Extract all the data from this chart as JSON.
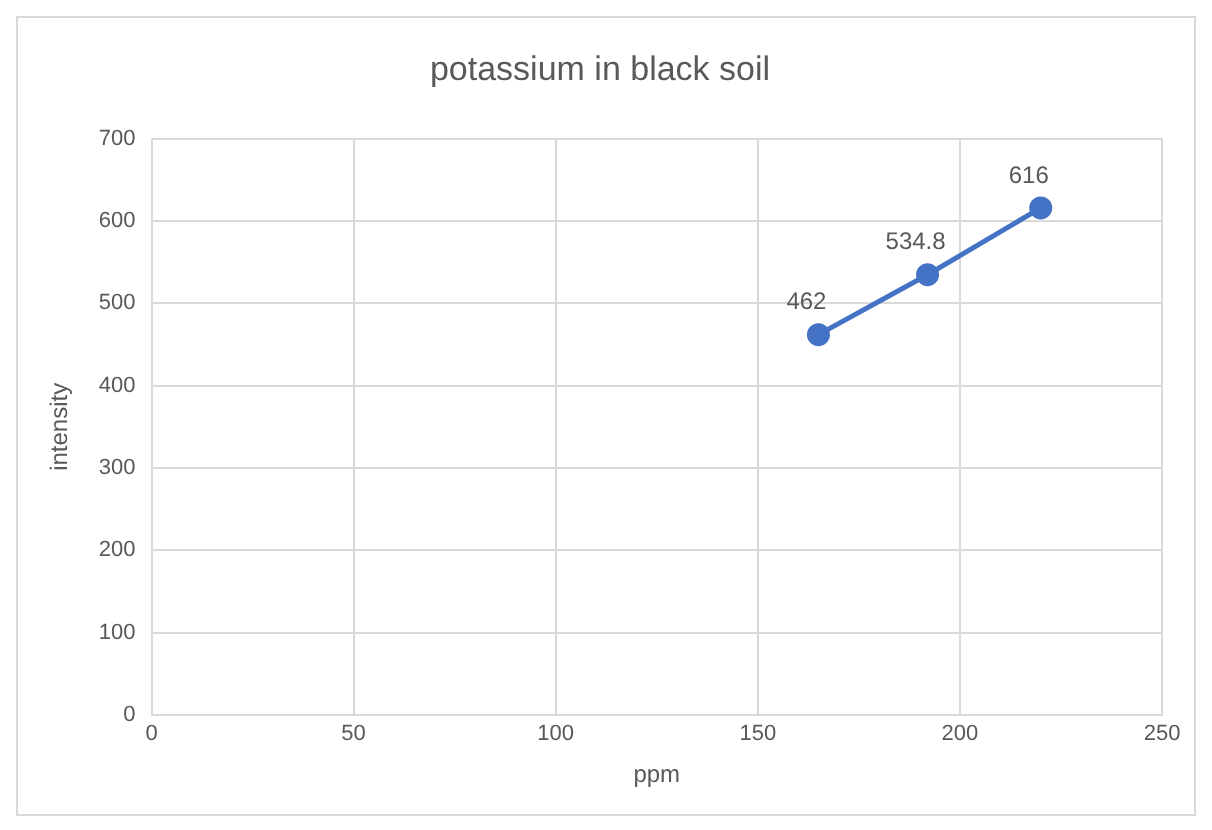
{
  "chart_data": {
    "type": "scatter",
    "title": "potassium in black soil",
    "xlabel": "ppm",
    "ylabel": "intensity",
    "series": [
      {
        "type": "line",
        "x": [
          165,
          192,
          220
        ],
        "values": [
          462,
          534.8,
          616
        ],
        "color": "#4472c4"
      }
    ],
    "xlim": [
      0,
      250
    ],
    "xticks": [
      0,
      50,
      100,
      150,
      200,
      250
    ],
    "ylim": [
      0,
      700
    ],
    "yticks": [
      0,
      100,
      200,
      300,
      400,
      500,
      600,
      700
    ],
    "grid": true,
    "legend": false,
    "marker": "circle",
    "line_style": "solid",
    "data_labels": true
  }
}
